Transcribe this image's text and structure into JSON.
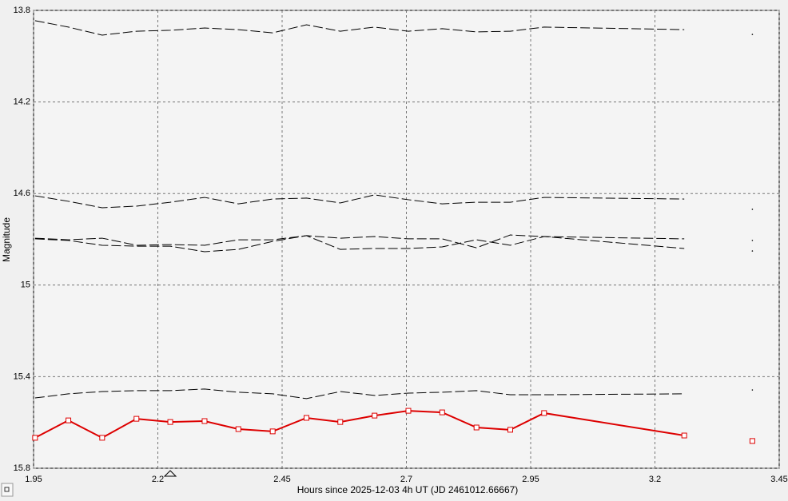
{
  "chart_data": {
    "type": "line",
    "y_label": "Magnitude",
    "x_label": "Hours since 2025-12-03 4h UT (JD 2461012.66667)",
    "xlim": [
      1.95,
      3.45
    ],
    "xticks": [
      1.95,
      2.2,
      2.45,
      2.7,
      2.95,
      3.2,
      3.45
    ],
    "ylim": [
      13.8,
      15.8
    ],
    "yticks": [
      13.8,
      14.2,
      14.6,
      15,
      15.4,
      15.8
    ],
    "y_inverted": true,
    "grid": true,
    "x": [
      1.953,
      2.02,
      2.088,
      2.157,
      2.225,
      2.294,
      2.362,
      2.431,
      2.499,
      2.567,
      2.636,
      2.704,
      2.772,
      2.841,
      2.909,
      2.977,
      3.259
    ],
    "series": [
      {
        "color": "#000000",
        "line_style": "dashed",
        "marker": "none",
        "values": [
          13.845,
          13.873,
          13.908,
          13.891,
          13.887,
          13.877,
          13.884,
          13.898,
          13.863,
          13.891,
          13.873,
          13.891,
          13.88,
          13.894,
          13.891,
          13.873,
          13.884
        ]
      },
      {
        "color": "#000000",
        "line_style": "dashed",
        "marker": "none",
        "values": [
          14.61,
          14.634,
          14.662,
          14.655,
          14.638,
          14.617,
          14.645,
          14.624,
          14.62,
          14.641,
          14.606,
          14.627,
          14.645,
          14.638,
          14.638,
          14.617,
          14.624
        ]
      },
      {
        "color": "#000000",
        "line_style": "dashed",
        "marker": "none",
        "values": [
          14.795,
          14.802,
          14.795,
          14.826,
          14.823,
          14.826,
          14.802,
          14.802,
          14.784,
          14.795,
          14.788,
          14.798,
          14.798,
          14.837,
          14.781,
          14.788,
          14.798
        ]
      },
      {
        "color": "#000000",
        "line_style": "dashed",
        "marker": "none",
        "values": [
          14.798,
          14.805,
          14.826,
          14.83,
          14.83,
          14.854,
          14.844,
          14.809,
          14.784,
          14.844,
          14.84,
          14.84,
          14.833,
          14.802,
          14.826,
          14.788,
          14.84
        ]
      },
      {
        "color": "#000000",
        "line_style": "dashed",
        "marker": "none",
        "values": [
          15.493,
          15.475,
          15.465,
          15.461,
          15.461,
          15.454,
          15.468,
          15.475,
          15.496,
          15.465,
          15.482,
          15.472,
          15.468,
          15.461,
          15.479,
          15.479,
          15.475
        ]
      },
      {
        "color": "#dd0000",
        "line_style": "solid",
        "marker": "square",
        "values": [
          15.667,
          15.591,
          15.667,
          15.584,
          15.598,
          15.594,
          15.629,
          15.639,
          15.58,
          15.598,
          15.57,
          15.549,
          15.556,
          15.622,
          15.632,
          15.559,
          15.657
        ]
      },
      {
        "color": "#000000",
        "line_style": "none",
        "marker": "dot",
        "x": [
          3.396
        ],
        "values": [
          13.905
        ]
      },
      {
        "color": "#000000",
        "line_style": "none",
        "marker": "dot",
        "x": [
          3.396
        ],
        "values": [
          14.669
        ]
      },
      {
        "color": "#000000",
        "line_style": "none",
        "marker": "dot",
        "x": [
          3.396
        ],
        "values": [
          14.805
        ]
      },
      {
        "color": "#000000",
        "line_style": "none",
        "marker": "dot",
        "x": [
          3.396
        ],
        "values": [
          14.851
        ]
      },
      {
        "color": "#000000",
        "line_style": "none",
        "marker": "dot",
        "x": [
          3.396
        ],
        "values": [
          15.458
        ]
      },
      {
        "color": "#dd0000",
        "line_style": "none",
        "marker": "square",
        "x": [
          3.396
        ],
        "values": [
          15.681
        ]
      }
    ]
  }
}
